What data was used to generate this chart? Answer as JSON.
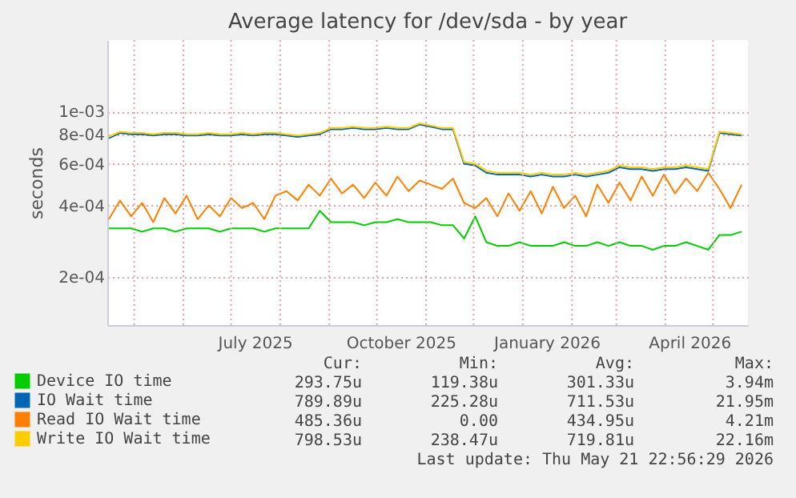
{
  "chart_data": {
    "type": "line",
    "title": "Average latency for /dev/sda - by year",
    "ylabel": "seconds",
    "x": [
      "2025-04-15",
      "2025-04-22",
      "2025-04-29",
      "2025-05-06",
      "2025-05-13",
      "2025-05-20",
      "2025-05-27",
      "2025-06-03",
      "2025-06-10",
      "2025-06-17",
      "2025-06-24",
      "2025-07-01",
      "2025-07-08",
      "2025-07-15",
      "2025-07-22",
      "2025-07-29",
      "2025-08-05",
      "2025-08-12",
      "2025-08-19",
      "2025-08-26",
      "2025-09-02",
      "2025-09-09",
      "2025-09-16",
      "2025-09-23",
      "2025-09-30",
      "2025-10-07",
      "2025-10-14",
      "2025-10-21",
      "2025-10-28",
      "2025-11-04",
      "2025-11-11",
      "2025-11-18",
      "2025-11-25",
      "2025-12-02",
      "2025-12-09",
      "2025-12-16",
      "2025-12-23",
      "2025-12-30",
      "2026-01-06",
      "2026-01-13",
      "2026-01-20",
      "2026-01-27",
      "2026-02-03",
      "2026-02-10",
      "2026-02-17",
      "2026-02-24",
      "2026-03-03",
      "2026-03-10",
      "2026-03-17",
      "2026-03-24",
      "2026-03-31",
      "2026-04-07",
      "2026-04-14",
      "2026-04-21",
      "2026-04-28",
      "2026-05-05",
      "2026-05-12",
      "2026-05-19"
    ],
    "series": [
      {
        "name": "Device IO time",
        "color": "#00cc00",
        "values": [
          0.00032,
          0.00032,
          0.00032,
          0.00031,
          0.00032,
          0.00032,
          0.00031,
          0.00032,
          0.00032,
          0.00032,
          0.00031,
          0.00032,
          0.00032,
          0.00032,
          0.00031,
          0.00032,
          0.00032,
          0.00032,
          0.00032,
          0.00038,
          0.00034,
          0.00034,
          0.00034,
          0.00033,
          0.00034,
          0.00034,
          0.00035,
          0.00034,
          0.00034,
          0.00034,
          0.00033,
          0.00033,
          0.00029,
          0.00036,
          0.00028,
          0.00027,
          0.00027,
          0.00028,
          0.00027,
          0.00027,
          0.00027,
          0.00028,
          0.00027,
          0.00027,
          0.00028,
          0.00027,
          0.00028,
          0.00027,
          0.00027,
          0.00026,
          0.00027,
          0.00027,
          0.00028,
          0.00027,
          0.00026,
          0.0003,
          0.0003,
          0.00031
        ]
      },
      {
        "name": "IO Wait time",
        "color": "#0066b3",
        "values": [
          0.00077,
          0.00081,
          0.0008,
          0.0008,
          0.00079,
          0.0008,
          0.0008,
          0.00079,
          0.00079,
          0.0008,
          0.00079,
          0.00079,
          0.0008,
          0.00079,
          0.0008,
          0.0008,
          0.00079,
          0.00078,
          0.00079,
          0.0008,
          0.00084,
          0.00084,
          0.00085,
          0.00084,
          0.00084,
          0.00085,
          0.00084,
          0.00084,
          0.00088,
          0.00086,
          0.00084,
          0.00084,
          0.0006,
          0.00059,
          0.00055,
          0.00054,
          0.00054,
          0.00054,
          0.00053,
          0.00054,
          0.00053,
          0.00053,
          0.00054,
          0.00053,
          0.00054,
          0.00055,
          0.00058,
          0.00057,
          0.00057,
          0.00056,
          0.00057,
          0.00057,
          0.00058,
          0.00057,
          0.00056,
          0.00081,
          0.0008,
          0.00079
        ]
      },
      {
        "name": "Read IO Wait time",
        "color": "#ff8000",
        "values": [
          0.00035,
          0.00042,
          0.00036,
          0.00041,
          0.00034,
          0.00043,
          0.00037,
          0.00044,
          0.00035,
          0.0004,
          0.00036,
          0.00043,
          0.00039,
          0.00041,
          0.00035,
          0.00044,
          0.00046,
          0.00042,
          0.00049,
          0.00044,
          0.00052,
          0.00045,
          0.00049,
          0.00043,
          0.0005,
          0.00044,
          0.00053,
          0.00046,
          0.00051,
          0.00049,
          0.00047,
          0.00052,
          0.00041,
          0.00039,
          0.00043,
          0.00036,
          0.00045,
          0.00038,
          0.00046,
          0.00037,
          0.00048,
          0.00039,
          0.00044,
          0.00036,
          0.00049,
          0.00041,
          0.0005,
          0.00042,
          0.00053,
          0.00044,
          0.00054,
          0.00045,
          0.00052,
          0.00046,
          0.00055,
          0.00047,
          0.00039,
          0.00049
        ]
      },
      {
        "name": "Write IO Wait time",
        "color": "#ffcc00",
        "values": [
          0.00078,
          0.00082,
          0.00081,
          0.00081,
          0.0008,
          0.00081,
          0.00081,
          0.0008,
          0.0008,
          0.00081,
          0.0008,
          0.0008,
          0.00081,
          0.0008,
          0.00081,
          0.00081,
          0.0008,
          0.00079,
          0.0008,
          0.00081,
          0.00085,
          0.00085,
          0.00086,
          0.00085,
          0.00085,
          0.00086,
          0.00085,
          0.00085,
          0.00089,
          0.00087,
          0.00085,
          0.00085,
          0.00061,
          0.0006,
          0.00056,
          0.00055,
          0.00055,
          0.00055,
          0.00054,
          0.00055,
          0.00054,
          0.00054,
          0.00055,
          0.00054,
          0.00055,
          0.00056,
          0.00059,
          0.00058,
          0.00058,
          0.00057,
          0.00058,
          0.00058,
          0.00059,
          0.00058,
          0.00057,
          0.00082,
          0.00081,
          0.0008
        ]
      }
    ],
    "log": "y",
    "grid": true,
    "legend": "bottom left",
    "marker": "none",
    "line_style": "solid",
    "xlim": [
      "2025-04-14",
      "2026-05-23"
    ],
    "xticks": [
      {
        "value": "2025-05-01",
        "label": null
      },
      {
        "value": "2025-06-01",
        "label": null
      },
      {
        "value": "2025-07-01",
        "label": null
      },
      {
        "value": "2025-07-16",
        "label": "July 2025"
      },
      {
        "value": "2025-08-01",
        "label": null
      },
      {
        "value": "2025-09-01",
        "label": null
      },
      {
        "value": "2025-10-01",
        "label": null
      },
      {
        "value": "2025-10-16",
        "label": "October 2025"
      },
      {
        "value": "2025-11-01",
        "label": null
      },
      {
        "value": "2025-12-01",
        "label": null
      },
      {
        "value": "2026-01-01",
        "label": null
      },
      {
        "value": "2026-01-16",
        "label": "January 2026"
      },
      {
        "value": "2026-02-01",
        "label": null
      },
      {
        "value": "2026-03-01",
        "label": null
      },
      {
        "value": "2026-04-01",
        "label": null
      },
      {
        "value": "2026-04-16",
        "label": "April 2026"
      },
      {
        "value": "2026-05-01",
        "label": null
      }
    ],
    "ylim": [
      0.000125,
      0.002
    ],
    "yticks": [
      {
        "value": 0.0002,
        "label": "2e-04"
      },
      {
        "value": 0.0004,
        "label": "4e-04"
      },
      {
        "value": 0.0006,
        "label": "6e-04"
      },
      {
        "value": 0.0008,
        "label": "8e-04"
      },
      {
        "value": 0.001,
        "label": "1e-03"
      }
    ],
    "annotations": [
      "Cur:",
      "Min:",
      "Avg:",
      "Max:",
      "293.75u",
      "119.38u",
      "301.33u",
      "3.94m",
      "789.89u",
      "225.28u",
      "711.53u",
      "21.95m",
      "485.36u",
      "0.00",
      "434.95u",
      "4.21m",
      "798.53u",
      "238.47u",
      "719.81u",
      "22.16m",
      "Last update: Thu May 21 22:56:29 2026"
    ]
  }
}
